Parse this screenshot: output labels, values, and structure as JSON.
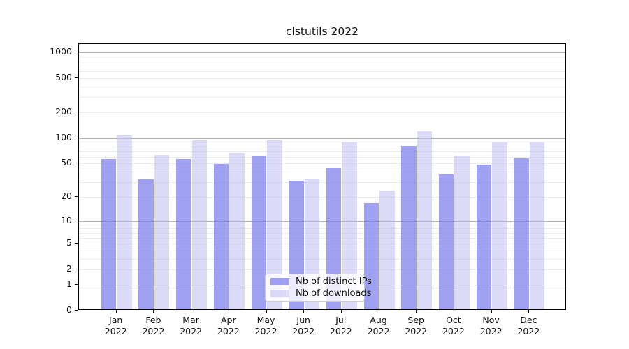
{
  "title": "clstutils 2022",
  "chart_data": {
    "type": "bar",
    "title": "clstutils 2022",
    "yscale": "log1p",
    "ylim": [
      0,
      1251
    ],
    "y_ticks": [
      0,
      1,
      2,
      5,
      10,
      20,
      50,
      100,
      200,
      500,
      1000
    ],
    "grid": true,
    "legend_position": "lower center",
    "categories": [
      {
        "month": "Jan",
        "year": "2022"
      },
      {
        "month": "Feb",
        "year": "2022"
      },
      {
        "month": "Mar",
        "year": "2022"
      },
      {
        "month": "Apr",
        "year": "2022"
      },
      {
        "month": "May",
        "year": "2022"
      },
      {
        "month": "Jun",
        "year": "2022"
      },
      {
        "month": "Jul",
        "year": "2022"
      },
      {
        "month": "Aug",
        "year": "2022"
      },
      {
        "month": "Sep",
        "year": "2022"
      },
      {
        "month": "Oct",
        "year": "2022"
      },
      {
        "month": "Nov",
        "year": "2022"
      },
      {
        "month": "Dec",
        "year": "2022"
      }
    ],
    "series": [
      {
        "name": "Nb of distinct IPs",
        "key": "distinct-ips",
        "color": "#7d7deb",
        "alpha": 0.72,
        "values": [
          54,
          31,
          54,
          48,
          59,
          30,
          43,
          16,
          78,
          36,
          47,
          56
        ]
      },
      {
        "name": "Nb of downloads",
        "key": "downloads",
        "color": "#bebef0",
        "alpha": 0.55,
        "values": [
          104,
          61,
          91,
          64,
          90,
          32,
          88,
          23,
          117,
          60,
          86,
          86
        ]
      }
    ]
  }
}
